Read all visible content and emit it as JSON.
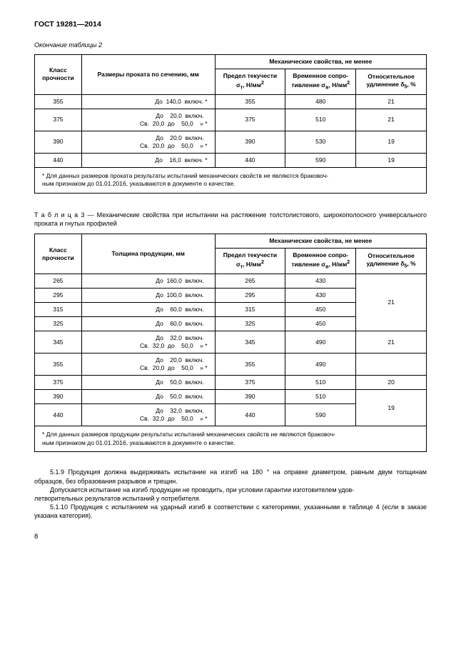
{
  "header": "ГОСТ 19281—2014",
  "continuation": "Окончание таблицы 2",
  "table2": {
    "mechHeader": "Механические свойства, не менее",
    "col1": "Класс\nпрочности",
    "col2": "Размеры проката по сечению, мм",
    "col3": "Предел текучести\nσт, Н/мм²",
    "col4": "Временное сопро-\nтивление σв, Н/мм²",
    "col5": "Относительное\nудлинение δ₅, %",
    "rows": [
      {
        "cls": "355",
        "size": "До  140,0  включ. *",
        "yield": "355",
        "tensile": "480",
        "elong": "21"
      },
      {
        "cls": "375",
        "size": "До    20,0  включ.  \nСв.  20,0  до    50,0    » *",
        "yield": "375",
        "tensile": "510",
        "elong": "21"
      },
      {
        "cls": "390",
        "size": "До    20,0  включ.  \nСв.  20,0  до    50,0    » *",
        "yield": "390",
        "tensile": "530",
        "elong": "19"
      },
      {
        "cls": "440",
        "size": "До    16,0  включ. *",
        "yield": "440",
        "tensile": "590",
        "elong": "19"
      }
    ],
    "footnote": "* Для данных размеров проката результаты испытаний механических свойств не являются браковоч-\nным признаком до 01.01.2016, указываются в документе о качестве."
  },
  "table3caption": "Т а б л и ц а  3 — Механические свойства при испытании на растяжение толстолистового, широкополосного универсального проката и гнутых профилей",
  "table3": {
    "mechHeader": "Механические свойства, не менее",
    "col1": "Класс\nпрочности",
    "col2": "Толщина продукции, мм",
    "col3": "Предел текучести\nσт, Н/мм²",
    "col4": "Временное сопро-\nтивление σв, Н/мм²",
    "col5": "Относительное\nудлинение δ₅, %",
    "rows": [
      {
        "cls": "265",
        "size": "До  160,0  включ.  ",
        "yield": "265",
        "tensile": "430"
      },
      {
        "cls": "295",
        "size": "До  100,0  включ.  ",
        "yield": "295",
        "tensile": "430"
      },
      {
        "cls": "315",
        "size": "До    60,0  включ.  ",
        "yield": "315",
        "tensile": "450"
      },
      {
        "cls": "325",
        "size": "До    60,0  включ.  ",
        "yield": "325",
        "tensile": "450"
      },
      {
        "cls": "345",
        "size": "До    32,0  включ.  \nСв.  32,0  до    50,0    » *",
        "yield": "345",
        "tensile": "490",
        "elong": "21"
      },
      {
        "cls": "355",
        "size": "До    20,0  включ.  \nСв.  20,0  до    50,0    » *",
        "yield": "355",
        "tensile": "490"
      },
      {
        "cls": "375",
        "size": "До    50,0  включ.  ",
        "yield": "375",
        "tensile": "510",
        "elong": "20"
      },
      {
        "cls": "390",
        "size": "До    50,0  включ.  ",
        "yield": "390",
        "tensile": "510"
      },
      {
        "cls": "440",
        "size": "До    32,0  включ.  \nСв.  32,0  до    50,0    » *",
        "yield": "440",
        "tensile": "590"
      }
    ],
    "elongGroup1": "21",
    "elongGroup3": "19",
    "footnote": "* Для данных размеров продукции результаты испытаний механических свойств не являются браковоч-\nным признаком до 01.01.2016, указываются в документе о качестве."
  },
  "para1": "5.1.9 Продукция должна выдерживать испытание на изгиб на 180 ° на оправке диаметром, равным двум толщинам образцов, без образования разрывов и трещин.",
  "para2": "Допускается испытание на изгиб продукции не проводить, при условии гарантии изготовителем удов-\nлетворительных результатов испытаний у потребителя.",
  "para3": "5.1.10 Продукция с испытанием на ударный изгиб в соответствии с категориями, указанными в таблице 4 (если в заказе указана категория).",
  "pageNumber": "8",
  "style": {
    "columnWidths": {
      "c1": "12%",
      "c2": "34%",
      "c3": "18%",
      "c4": "19%",
      "c5": "17%"
    }
  }
}
